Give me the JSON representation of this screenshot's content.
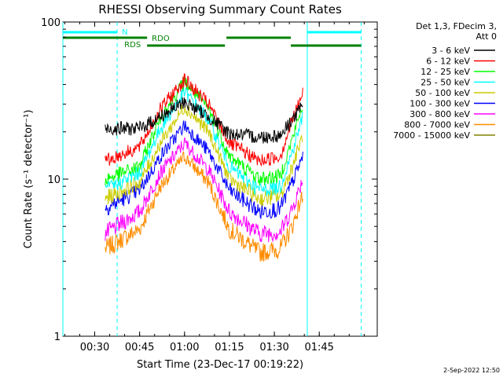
{
  "colors": {
    "background": "#ffffff",
    "axis": "#000000",
    "night": "#00ffff",
    "flag": "#008000"
  },
  "footer": {
    "timestamp": "2-Sep-2022 12:50"
  },
  "chart_data": {
    "type": "line",
    "title": "RHESSI Observing Summary Count Rates",
    "xlabel": "Start Time (23-Dec-17 00:19:22)",
    "ylabel": "Count Rate (s⁻¹ detector⁻¹)",
    "y_scale": "log",
    "ylim": [
      1,
      100
    ],
    "xlim": [
      "00:19:22",
      "02:04:22"
    ],
    "x_ticks": [
      "00:30",
      "00:45",
      "01:00",
      "01:15",
      "01:30",
      "01:45"
    ],
    "y_ticks": [
      "1",
      "10",
      "100"
    ],
    "grid": false,
    "legend": {
      "title_lines": [
        "Det 1,3, FDecim 3,",
        "Att 0"
      ],
      "placement": "right"
    },
    "flags": [
      {
        "label": "N",
        "color": "#00ffff",
        "segments": [
          [
            "00:19:22",
            "00:37:30"
          ],
          [
            "01:41:00",
            "01:59:00"
          ]
        ]
      },
      {
        "label": "RDO",
        "color": "#008000",
        "segments": [
          [
            "00:19:22",
            "00:47:30"
          ],
          [
            "01:14:00",
            "01:35:30"
          ]
        ]
      },
      {
        "label": "RDS",
        "color": "#008000",
        "segments": [
          [
            "00:47:30",
            "01:13:30"
          ],
          [
            "01:35:30",
            "01:59:00"
          ]
        ]
      }
    ],
    "night_bounds": [
      "00:19:22",
      "01:41:00"
    ],
    "saa_bounds": [
      "00:37:30",
      "01:59:00"
    ],
    "series": [
      {
        "name": "3 - 6 keV",
        "color": "#000000",
        "x": [
          "00:33:30",
          "00:45:00",
          "00:52:00",
          "01:00:00",
          "01:08:00",
          "01:15:00",
          "01:25:00",
          "01:32:00",
          "01:36:00",
          "01:39:30"
        ],
        "values": [
          21,
          21,
          25,
          31,
          25,
          19.5,
          18.5,
          19,
          24,
          29
        ]
      },
      {
        "name": "6 - 12 keV",
        "color": "#ff0000",
        "x": [
          "00:33:30",
          "00:45:00",
          "00:52:00",
          "01:00:00",
          "01:08:00",
          "01:15:00",
          "01:25:00",
          "01:32:00",
          "01:36:00",
          "01:39:30"
        ],
        "values": [
          13,
          16,
          28,
          43,
          30,
          17,
          13,
          14,
          24,
          35
        ]
      },
      {
        "name": "12 - 25 keV",
        "color": "#00ff00",
        "x": [
          "00:33:30",
          "00:45:00",
          "00:52:00",
          "01:00:00",
          "01:08:00",
          "01:15:00",
          "01:25:00",
          "01:32:00",
          "01:36:00",
          "01:39:30"
        ],
        "values": [
          10,
          12,
          25,
          42,
          28,
          14,
          10,
          10.5,
          18,
          30
        ]
      },
      {
        "name": "25 - 50 keV",
        "color": "#00ffff",
        "x": [
          "00:33:30",
          "00:45:00",
          "00:52:00",
          "01:00:00",
          "01:08:00",
          "01:15:00",
          "01:25:00",
          "01:32:00",
          "01:36:00",
          "01:39:30"
        ],
        "values": [
          8.5,
          11,
          21,
          36,
          24,
          12,
          8.5,
          9,
          15,
          25
        ]
      },
      {
        "name": "50 - 100 keV",
        "color": "#cccc00",
        "x": [
          "00:33:30",
          "00:45:00",
          "00:52:00",
          "01:00:00",
          "01:08:00",
          "01:15:00",
          "01:25:00",
          "01:32:00",
          "01:36:00",
          "01:39:30"
        ],
        "values": [
          7.5,
          9.5,
          17,
          29,
          20,
          10,
          7.5,
          7.8,
          12,
          19
        ]
      },
      {
        "name": "100 - 300 keV",
        "color": "#0000ff",
        "x": [
          "00:33:30",
          "00:45:00",
          "00:52:00",
          "01:00:00",
          "01:08:00",
          "01:15:00",
          "01:25:00",
          "01:32:00",
          "01:36:00",
          "01:39:30"
        ],
        "values": [
          6.5,
          8.5,
          14,
          22,
          15,
          8.5,
          6.2,
          6.5,
          9.5,
          14
        ]
      },
      {
        "name": "300 - 800 keV",
        "color": "#ff00ff",
        "x": [
          "00:33:30",
          "00:45:00",
          "00:52:00",
          "01:00:00",
          "01:08:00",
          "01:15:00",
          "01:25:00",
          "01:32:00",
          "01:36:00",
          "01:39:30"
        ],
        "values": [
          4.5,
          6.2,
          11,
          17,
          11.5,
          6.2,
          4.5,
          4.6,
          6.5,
          10
        ]
      },
      {
        "name": "800 - 7000 keV",
        "color": "#ff8c00",
        "x": [
          "00:33:30",
          "00:45:00",
          "00:52:00",
          "01:00:00",
          "01:08:00",
          "01:15:00",
          "01:25:00",
          "01:32:00",
          "01:36:00",
          "01:39:30"
        ],
        "values": [
          3.6,
          4.8,
          9,
          14,
          9.5,
          4.8,
          3.4,
          3.6,
          5,
          8
        ]
      },
      {
        "name": "7000 - 15000 keV",
        "color": "#808000",
        "x": [],
        "values": []
      }
    ]
  }
}
